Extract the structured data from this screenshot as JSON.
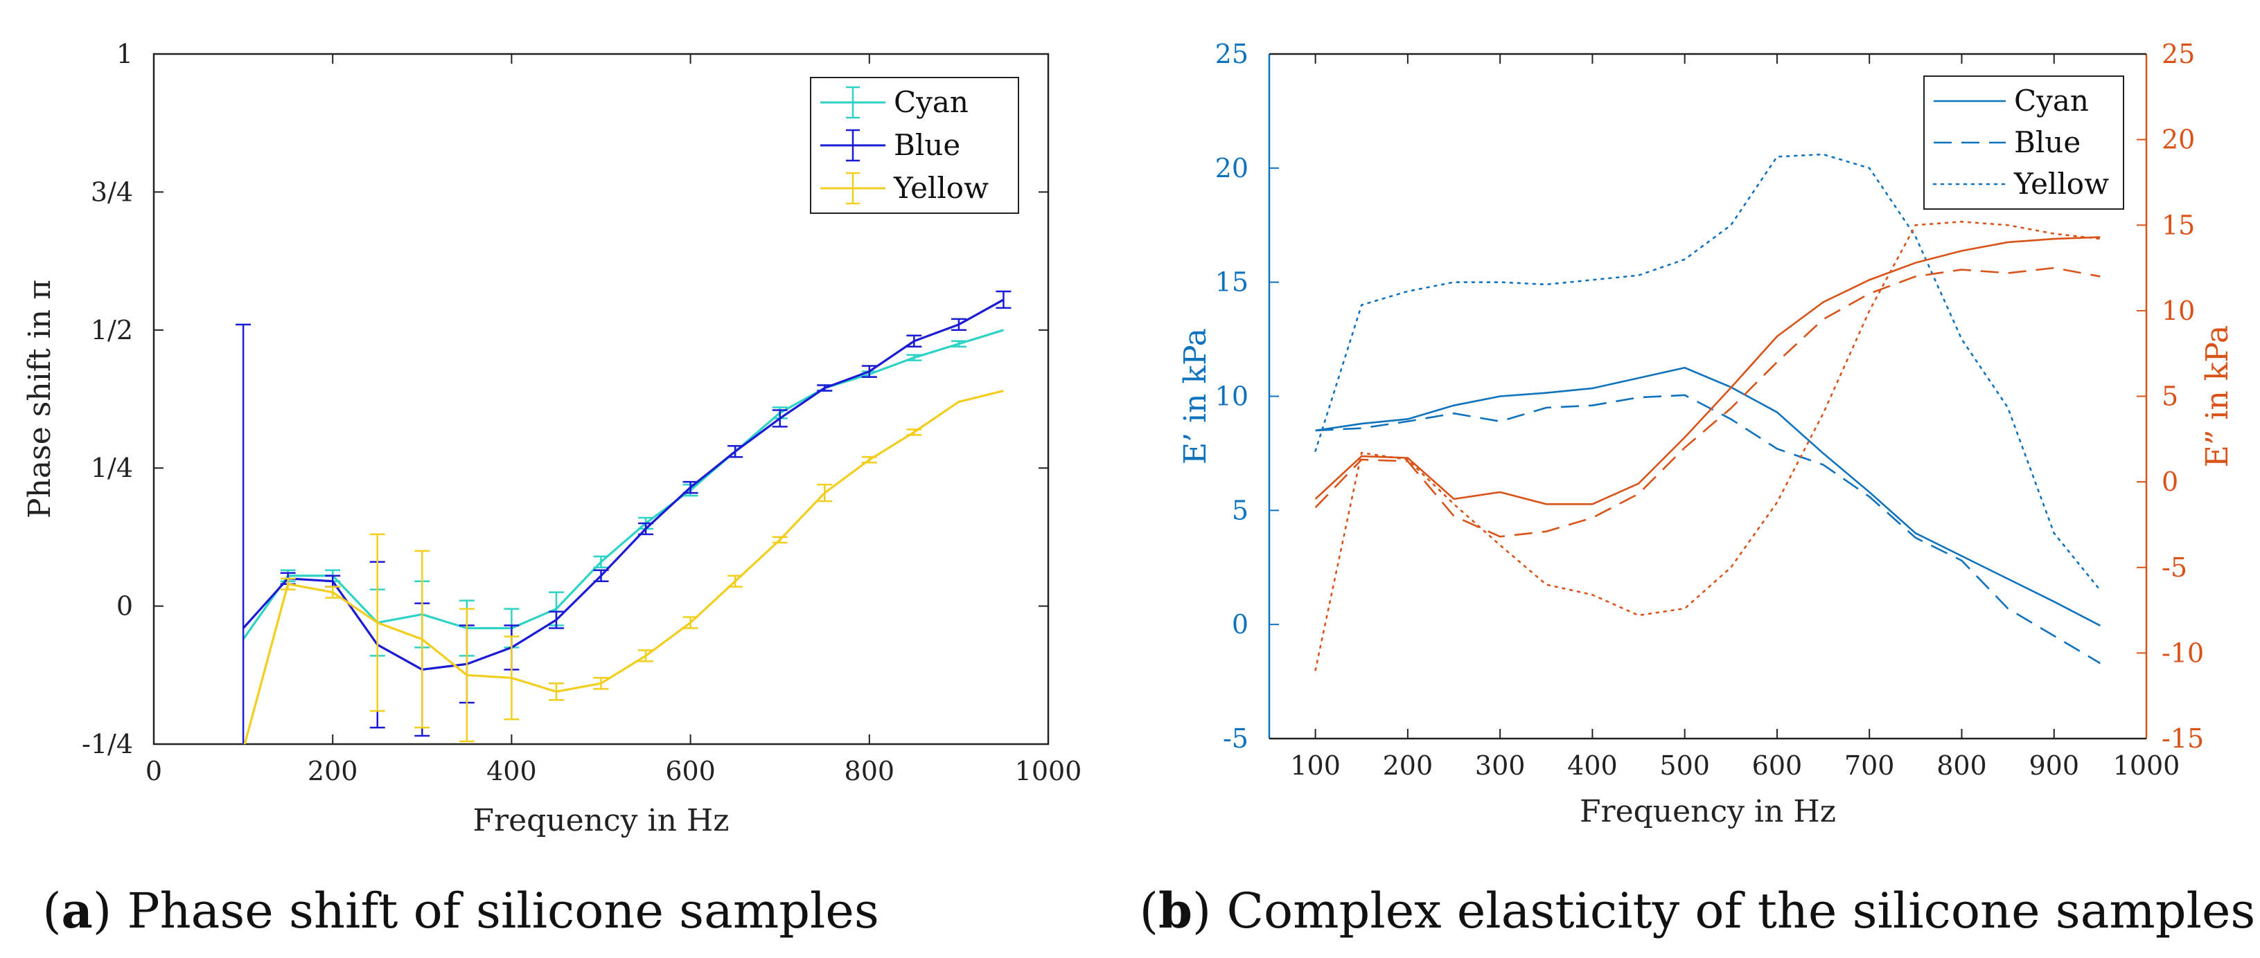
{
  "colors": {
    "cyan": "#2ed3c6",
    "blue": "#1b1bd6",
    "yellow": "#f2cf1e",
    "eprime": "#0f72bd",
    "edouble": "#d95319",
    "axis": "#222222"
  },
  "captions": {
    "a_letter": "a",
    "a_text": " Phase shift of silicone samples",
    "b_letter": "b",
    "b_text": " Complex elasticity of the silicone samples"
  },
  "chart_data": [
    {
      "type": "line",
      "title": "",
      "xlabel": "Frequency in Hz",
      "ylabel": "Phase shift in π",
      "xlim": [
        0,
        1000
      ],
      "ylim": [
        -0.25,
        1
      ],
      "x_ticks": [
        0,
        200,
        400,
        600,
        800,
        1000
      ],
      "y_ticks": [
        {
          "value": -0.25,
          "label": "-1/4"
        },
        {
          "value": 0,
          "label": "0"
        },
        {
          "value": 0.25,
          "label": "1/4"
        },
        {
          "value": 0.5,
          "label": "1/2"
        },
        {
          "value": 0.75,
          "label": "3/4"
        },
        {
          "value": 1,
          "label": "1"
        }
      ],
      "legend": "top-right",
      "x": [
        100,
        150,
        200,
        250,
        300,
        350,
        400,
        450,
        500,
        550,
        600,
        650,
        700,
        750,
        800,
        850,
        900,
        950
      ],
      "series": [
        {
          "name": "Cyan",
          "color_key": "cyan",
          "values": [
            -0.06,
            0.055,
            0.055,
            -0.03,
            -0.015,
            -0.04,
            -0.04,
            -0.005,
            0.08,
            0.15,
            0.21,
            0.28,
            0.35,
            0.395,
            0.42,
            0.45,
            0.475,
            0.5
          ],
          "errors": [
            0,
            0.01,
            0.01,
            0.06,
            0.06,
            0.05,
            0.035,
            0.03,
            0.01,
            0.01,
            0.01,
            0.01,
            0.01,
            0.005,
            0.005,
            0.005,
            0.005,
            0
          ]
        },
        {
          "name": "Blue",
          "color_key": "blue",
          "values": [
            -0.04,
            0.05,
            0.045,
            -0.07,
            -0.115,
            -0.105,
            -0.075,
            -0.025,
            0.055,
            0.14,
            0.215,
            0.28,
            0.34,
            0.395,
            0.425,
            0.48,
            0.51,
            0.555
          ],
          "errors": [
            0.55,
            0.01,
            0.01,
            0.15,
            0.12,
            0.07,
            0.04,
            0.015,
            0.01,
            0.01,
            0.01,
            0.01,
            0.015,
            0.005,
            0.01,
            0.01,
            0.01,
            0.015
          ]
        },
        {
          "name": "Yellow",
          "color_key": "yellow",
          "values": [
            -0.26,
            0.04,
            0.025,
            -0.03,
            -0.06,
            -0.125,
            -0.13,
            -0.155,
            -0.14,
            -0.09,
            -0.03,
            0.045,
            0.12,
            0.205,
            0.265,
            0.315,
            0.37,
            0.39
          ],
          "errors": [
            0,
            0.01,
            0.01,
            0.16,
            0.16,
            0.12,
            0.075,
            0.015,
            0.01,
            0.01,
            0.01,
            0.01,
            0.005,
            0.015,
            0.005,
            0.005,
            0,
            0
          ]
        }
      ]
    },
    {
      "type": "line",
      "title": "",
      "xlabel": "Frequency in Hz",
      "ylabel_left": "E’ in kPa",
      "ylabel_right": "E” in kPa",
      "xlim": [
        50,
        1000
      ],
      "ylim_left": [
        -5,
        25
      ],
      "ylim_right": [
        -15,
        25
      ],
      "x_ticks": [
        100,
        200,
        300,
        400,
        500,
        600,
        700,
        800,
        900,
        1000
      ],
      "y_ticks_left": [
        -5,
        0,
        5,
        10,
        15,
        20,
        25
      ],
      "y_ticks_right": [
        -15,
        -10,
        -5,
        0,
        5,
        10,
        15,
        20,
        25
      ],
      "legend": "top-right",
      "x": [
        100,
        150,
        200,
        250,
        300,
        350,
        400,
        450,
        500,
        550,
        600,
        650,
        700,
        750,
        800,
        850,
        900,
        950
      ],
      "series": [
        {
          "name": "Cyan",
          "axis": "left",
          "dash": "solid",
          "color_key": "eprime",
          "values": [
            8.5,
            8.8,
            9.0,
            9.6,
            10.0,
            10.15,
            10.35,
            10.8,
            11.25,
            10.4,
            9.3,
            7.5,
            5.8,
            4.0,
            3.0,
            2.0,
            1.0,
            -0.05
          ]
        },
        {
          "name": "Blue",
          "axis": "left",
          "dash": "dashed",
          "color_key": "eprime",
          "values": [
            8.5,
            8.6,
            8.9,
            9.25,
            8.9,
            9.5,
            9.6,
            9.95,
            10.05,
            9.0,
            7.7,
            7.0,
            5.6,
            3.8,
            2.8,
            0.7,
            -0.5,
            -1.7
          ]
        },
        {
          "name": "Yellow",
          "axis": "left",
          "dash": "dotted",
          "color_key": "eprime",
          "values": [
            7.6,
            14.0,
            14.6,
            15.0,
            15.0,
            14.9,
            15.1,
            15.3,
            16.0,
            17.5,
            20.5,
            20.6,
            20.0,
            17.0,
            12.5,
            9.5,
            4.0,
            1.5
          ]
        },
        {
          "name": "Cyan",
          "axis": "right",
          "dash": "solid",
          "color_key": "edouble",
          "values": [
            -1.0,
            1.5,
            1.4,
            -1.0,
            -0.6,
            -1.3,
            -1.3,
            -0.1,
            2.6,
            5.5,
            8.5,
            10.5,
            11.8,
            12.8,
            13.5,
            14.0,
            14.2,
            14.3
          ]
        },
        {
          "name": "Blue",
          "axis": "right",
          "dash": "dashed",
          "color_key": "edouble",
          "values": [
            -1.5,
            1.3,
            1.2,
            -2.0,
            -3.2,
            -2.9,
            -2.1,
            -0.7,
            2.0,
            4.3,
            7.0,
            9.5,
            11.0,
            12.0,
            12.4,
            12.2,
            12.5,
            12.0
          ]
        },
        {
          "name": "Yellow",
          "axis": "right",
          "dash": "dotted",
          "color_key": "edouble",
          "values": [
            -11.0,
            1.7,
            1.3,
            -1.3,
            -3.7,
            -6.0,
            -6.6,
            -7.8,
            -7.4,
            -5.0,
            -1.2,
            4.0,
            10.0,
            15.0,
            15.2,
            15.0,
            14.5,
            14.2
          ]
        }
      ],
      "legend_entries": [
        {
          "name": "Cyan",
          "dash": "solid"
        },
        {
          "name": "Blue",
          "dash": "dashed"
        },
        {
          "name": "Yellow",
          "dash": "dotted"
        }
      ]
    }
  ]
}
